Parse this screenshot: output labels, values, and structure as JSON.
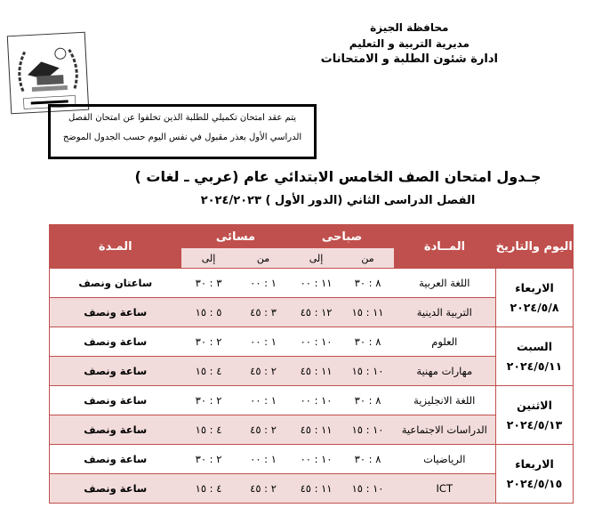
{
  "header": {
    "lines": [
      "محافظة الجيزة",
      "مديرية التربية و التعليم",
      "ادارة شئون الطلبة و الامتحانات"
    ]
  },
  "logo": {
    "text": "شئون الطلبة",
    "top_text": "محافظة الجيزة",
    "ribbon": "مديرية التربية و التعليم"
  },
  "notice": {
    "line1": "يتم عقد امتحان تكميلي للطلبة الذين تخلفوا عن امتحان الفصل",
    "line2": "الدراسي الأول بعذر مقبول في نفس اليوم حسب الجدول الموضح"
  },
  "title": "جـدول امتحان الصف الخامس الابتدائي عام (عربي ـ لغات )",
  "subtitle": "الفصل الدراسى الثاني (الدور الأول )  ٢٠٢٤/٢٠٢٣",
  "table": {
    "headers": {
      "day": "اليوم والتاريخ",
      "subject": "المــادة",
      "morning": "صباحى",
      "evening": "مسائى",
      "duration": "المـدة",
      "from": "من",
      "to": "إلى"
    },
    "days": [
      {
        "day": "الاربعاء",
        "date": "٢٠٢٤/٥/٨",
        "rows": [
          {
            "subject": "اللغة العربية",
            "m_from": "٨ : ٣٠",
            "m_to": "١١ : ٠٠",
            "e_from": "١ : ٠٠",
            "e_to": "٣ : ٣٠",
            "duration": "ساعتان ونصف"
          },
          {
            "subject": "التربية الدينية",
            "m_from": "١١ : ١٥",
            "m_to": "١٢ : ٤٥",
            "e_from": "٣ : ٤٥",
            "e_to": "٥ : ١٥",
            "duration": "ساعة ونصف"
          }
        ]
      },
      {
        "day": "السبت",
        "date": "٢٠٢٤/٥/١١",
        "rows": [
          {
            "subject": "العلوم",
            "m_from": "٨ : ٣٠",
            "m_to": "١٠ : ٠٠",
            "e_from": "١ : ٠٠",
            "e_to": "٢ : ٣٠",
            "duration": "ساعة ونصف"
          },
          {
            "subject": "مهارات مهنية",
            "m_from": "١٠ : ١٥",
            "m_to": "١١ : ٤٥",
            "e_from": "٢ : ٤٥",
            "e_to": "٤ : ١٥",
            "duration": "ساعة ونصف"
          }
        ]
      },
      {
        "day": "الاثنين",
        "date": "٢٠٢٤/٥/١٣",
        "rows": [
          {
            "subject": "اللغة الانجليزية",
            "m_from": "٨ : ٣٠",
            "m_to": "١٠ : ٠٠",
            "e_from": "١ : ٠٠",
            "e_to": "٢ : ٣٠",
            "duration": "ساعة ونصف"
          },
          {
            "subject": "الدراسات الاجتماعية",
            "m_from": "١٠ : ١٥",
            "m_to": "١١ : ٤٥",
            "e_from": "٢ : ٤٥",
            "e_to": "٤ : ١٥",
            "duration": "ساعة ونصف"
          }
        ]
      },
      {
        "day": "الاربعاء",
        "date": "٢٠٢٤/٥/١٥",
        "rows": [
          {
            "subject": "الرياضيات",
            "m_from": "٨ : ٣٠",
            "m_to": "١٠ : ٠٠",
            "e_from": "١ : ٠٠",
            "e_to": "٢ : ٣٠",
            "duration": "ساعة ونصف"
          },
          {
            "subject": "ICT",
            "m_from": "١٠ : ١٥",
            "m_to": "١١ : ٤٥",
            "e_from": "٢ : ٤٥",
            "e_to": "٤ : ١٥",
            "duration": "ساعة ونصف"
          }
        ]
      }
    ]
  },
  "colors": {
    "header_bg": "#c0504d",
    "alt_row": "#f2dcdb"
  }
}
